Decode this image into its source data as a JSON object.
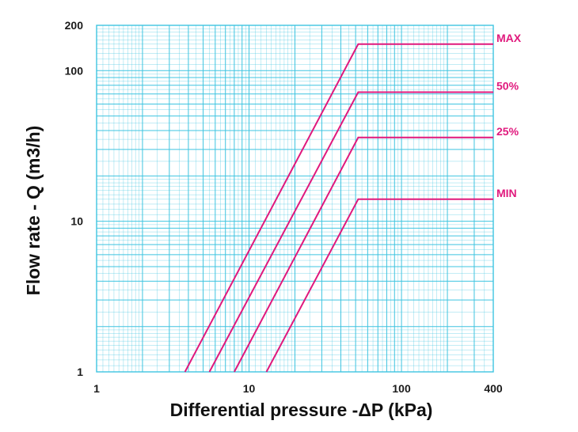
{
  "chart_data": {
    "type": "line",
    "xscale": "log",
    "yscale": "log",
    "xlim": [
      1,
      400
    ],
    "ylim": [
      1,
      200
    ],
    "xlabel": "Differential pressure -ΔP (kPa)",
    "ylabel": "Flow rate - Q (m3/h)",
    "x_ticks": [
      "1",
      "10",
      "100",
      "400"
    ],
    "y_ticks": [
      "1",
      "10",
      "100",
      "200"
    ],
    "grid": true,
    "grid_color": "#3ec4e0",
    "series_color": "#e0197d",
    "series": [
      {
        "name": "MAX",
        "points": [
          [
            3.8,
            1
          ],
          [
            52,
            150
          ],
          [
            400,
            150
          ]
        ]
      },
      {
        "name": "50%",
        "points": [
          [
            5.5,
            1
          ],
          [
            52,
            72
          ],
          [
            400,
            72
          ]
        ]
      },
      {
        "name": "25%",
        "points": [
          [
            8,
            1
          ],
          [
            52,
            36
          ],
          [
            400,
            36
          ]
        ]
      },
      {
        "name": "MIN",
        "points": [
          [
            13,
            1
          ],
          [
            52,
            14
          ],
          [
            400,
            14
          ]
        ]
      }
    ]
  }
}
